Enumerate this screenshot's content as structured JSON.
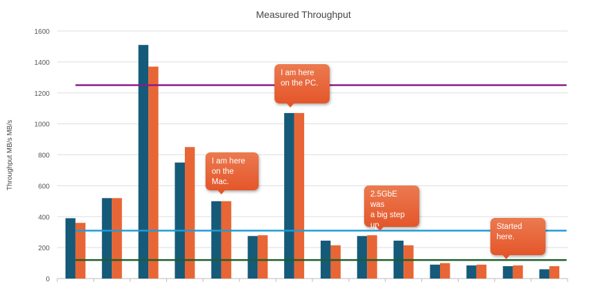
{
  "chart_data": {
    "type": "bar",
    "title": "Measured Throughput",
    "ylabel": "Throughput MB/s MB/s",
    "xlabel": "",
    "ylim": [
      0,
      1600
    ],
    "yticks": [
      0,
      200,
      400,
      600,
      800,
      1000,
      1200,
      1400,
      1600
    ],
    "grid": true,
    "categories": [
      "",
      "",
      "",
      "",
      "",
      "",
      "",
      "",
      "",
      "",
      "",
      "",
      "",
      ""
    ],
    "series": [
      {
        "color": "#165a7a",
        "values": [
          390,
          520,
          1510,
          750,
          500,
          275,
          1070,
          245,
          275,
          245,
          90,
          85,
          80,
          60
        ]
      },
      {
        "color": "#e86635",
        "values": [
          360,
          520,
          1370,
          850,
          500,
          280,
          1070,
          215,
          280,
          215,
          100,
          90,
          85,
          80
        ]
      }
    ],
    "reference_lines": [
      {
        "value": 1250,
        "color": "#8b1a8b"
      },
      {
        "value": 310,
        "color": "#1f9bd6"
      },
      {
        "value": 120,
        "color": "#1d5e2a"
      }
    ],
    "annotations": [
      {
        "text": [
          "I am here",
          "on the PC."
        ],
        "group": 6
      },
      {
        "text": [
          "I am here",
          "on the Mac."
        ],
        "group": 4
      },
      {
        "text": [
          "2.5GbE was",
          "a big step",
          "up."
        ],
        "group": 8
      },
      {
        "text": [
          "Started",
          "here."
        ],
        "group": 12
      }
    ]
  }
}
